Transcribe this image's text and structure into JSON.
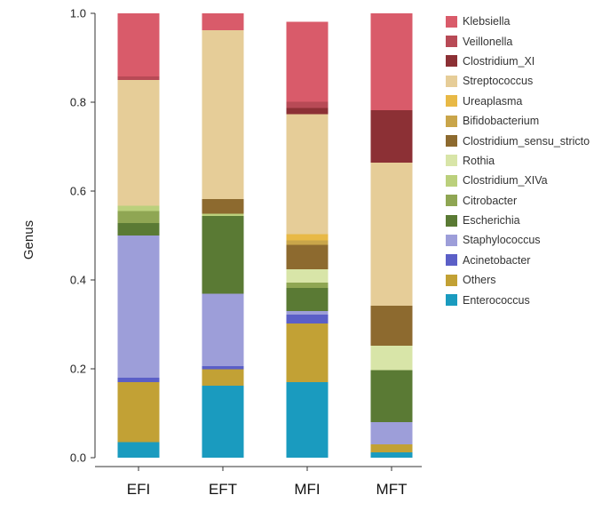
{
  "chart_data": {
    "type": "bar",
    "stacked": true,
    "title": "",
    "xlabel": "",
    "ylabel": "Genus",
    "ylim": [
      0,
      1
    ],
    "yticks": [
      "0.0",
      "0.2",
      "0.4",
      "0.6",
      "0.8",
      "1.0"
    ],
    "categories": [
      "EFI",
      "EFT",
      "MFI",
      "MFT"
    ],
    "series": [
      {
        "name": "Enterococcus",
        "color": "#1a9bbf",
        "values": [
          0.035,
          0.162,
          0.17,
          0.012
        ]
      },
      {
        "name": "Others",
        "color": "#c2a135",
        "values": [
          0.135,
          0.037,
          0.132,
          0.018
        ]
      },
      {
        "name": "Acinetobacter",
        "color": "#5b5fc7",
        "values": [
          0.01,
          0.007,
          0.02,
          0.0
        ]
      },
      {
        "name": "Staphylococcus",
        "color": "#9d9ed9",
        "values": [
          0.32,
          0.163,
          0.008,
          0.05
        ]
      },
      {
        "name": "Escherichia",
        "color": "#5a7a34",
        "values": [
          0.028,
          0.175,
          0.052,
          0.117
        ]
      },
      {
        "name": "Citrobacter",
        "color": "#8fa653",
        "values": [
          0.027,
          0.0,
          0.012,
          0.0
        ]
      },
      {
        "name": "Clostridium_XIVa",
        "color": "#bbd07c",
        "values": [
          0.012,
          0.005,
          0.0,
          0.0
        ]
      },
      {
        "name": "Rothia",
        "color": "#d8e5a8",
        "values": [
          0.0,
          0.0,
          0.03,
          0.055
        ]
      },
      {
        "name": "Clostridium_sensu_stricto",
        "color": "#8d6a2f",
        "values": [
          0.0,
          0.033,
          0.055,
          0.09
        ]
      },
      {
        "name": "Bifidobacterium",
        "color": "#c9a54a",
        "values": [
          0.0,
          0.0,
          0.01,
          0.0
        ]
      },
      {
        "name": "Ureaplasma",
        "color": "#e8b946",
        "values": [
          0.0,
          0.0,
          0.014,
          0.0
        ]
      },
      {
        "name": "Streptococcus",
        "color": "#e6cd98",
        "values": [
          0.283,
          0.38,
          0.27,
          0.322
        ]
      },
      {
        "name": "Clostridium_XI",
        "color": "#8c3035",
        "values": [
          0.0,
          0.0,
          0.014,
          0.118
        ]
      },
      {
        "name": "Veillonella",
        "color": "#b84a56",
        "values": [
          0.008,
          0.0,
          0.014,
          0.0
        ]
      },
      {
        "name": "Klebsiella",
        "color": "#d95b6a",
        "values": [
          0.142,
          0.038,
          0.18,
          0.218
        ]
      }
    ],
    "legend_order": [
      "Klebsiella",
      "Veillonella",
      "Clostridium_XI",
      "Streptococcus",
      "Ureaplasma",
      "Bifidobacterium",
      "Clostridium_sensu_stricto",
      "Rothia",
      "Clostridium_XIVa",
      "Citrobacter",
      "Escherichia",
      "Staphylococcus",
      "Acinetobacter",
      "Others",
      "Enterococcus"
    ],
    "legend_position": "right"
  }
}
